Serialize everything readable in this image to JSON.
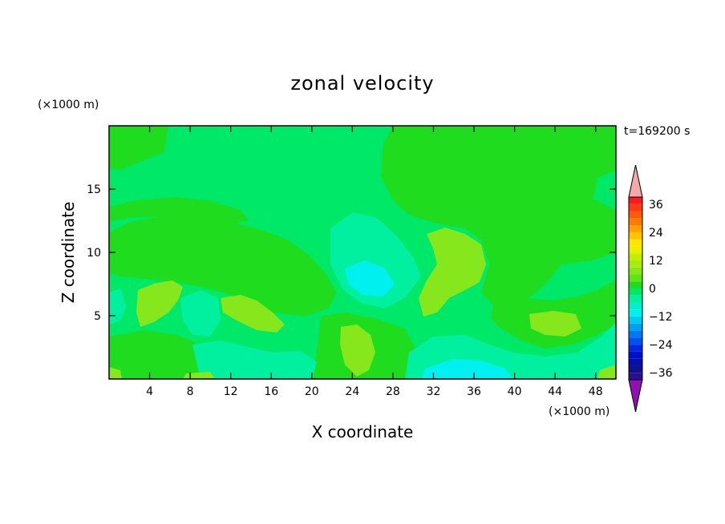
{
  "chart_data": {
    "type": "heatmap",
    "title": "zonal velocity",
    "xlabel": "X coordinate",
    "ylabel": "Z coordinate",
    "x_unit": "(×1000 m)",
    "z_unit": "(×1000 m)",
    "time_label": "t=169200 s",
    "xlim": [
      0,
      50
    ],
    "zlim": [
      0,
      20
    ],
    "x_ticks": [
      4,
      8,
      12,
      16,
      20,
      24,
      28,
      32,
      36,
      40,
      44,
      48
    ],
    "z_ticks": [
      5,
      10,
      15
    ],
    "x_tick_labels": [
      "4",
      "8",
      "12",
      "16",
      "20",
      "24",
      "28",
      "32",
      "36",
      "40",
      "44",
      "48"
    ],
    "z_tick_labels": [
      "5",
      "10",
      "15"
    ],
    "colorbar": {
      "levels": [
        -42,
        -39,
        -36,
        -33,
        -30,
        -27,
        -24,
        -21,
        -18,
        -15,
        -12,
        -9,
        -6,
        -3,
        0,
        3,
        6,
        9,
        12,
        15,
        18,
        21,
        24,
        27,
        30,
        33,
        36,
        39,
        42
      ],
      "tick_labels": [
        "36",
        "24",
        "12",
        "0",
        "−12",
        "−24",
        "−36"
      ],
      "tick_values": [
        36,
        24,
        12,
        0,
        -12,
        -24,
        -36
      ],
      "colors": {
        "36_39": "#ff1a1a",
        "33_36": "#ff3a10",
        "30_33": "#ff5a0a",
        "27_30": "#ff7a05",
        "24_27": "#ffa000",
        "21_24": "#ffc400",
        "18_21": "#ffe600",
        "15_18": "#e8f000",
        "12_15": "#c2ee00",
        "9_12": "#a6ec10",
        "6_9": "#86e81c",
        "3_6": "#5ee21a",
        "0_3": "#1fdc1f",
        "-3_0": "#00e868",
        "-6_-3": "#00f0a0",
        "-9_-6": "#00f0cc",
        "-12_-9": "#00f0f0",
        "-15_-12": "#00caf0",
        "-18_-15": "#00a0f0",
        "-21_-18": "#0078f0",
        "-24_-21": "#0050f0",
        "-27_-24": "#0028e0",
        "-30_-27": "#0010c8",
        "-33_-30": "#0010a8",
        "-36_-33": "#10108a",
        "-39_-36": "#2a1090",
        "over": "#f4a8a8",
        "under": "#9010b0"
      }
    },
    "field_colors": {
      "background": "#00e868",
      "light_green": "#1fdc1f",
      "green": "#5ee21a",
      "yellow_green": "#86e81c",
      "cyan_green": "#00f0a0",
      "cyan": "#00f0cc",
      "bright_cyan": "#00f0f0"
    }
  }
}
